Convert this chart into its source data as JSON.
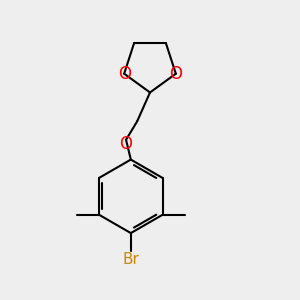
{
  "bg_color": "#eeeeee",
  "bond_color": "#000000",
  "oxygen_color": "#ff0000",
  "bromine_color": "#cc8800",
  "line_width": 1.5,
  "font_size_O": 12,
  "font_size_Br": 11,
  "figsize": [
    3.0,
    3.0
  ],
  "dpi": 100,
  "xlim": [
    0.15,
    0.85
  ],
  "ylim": [
    0.05,
    0.98
  ]
}
